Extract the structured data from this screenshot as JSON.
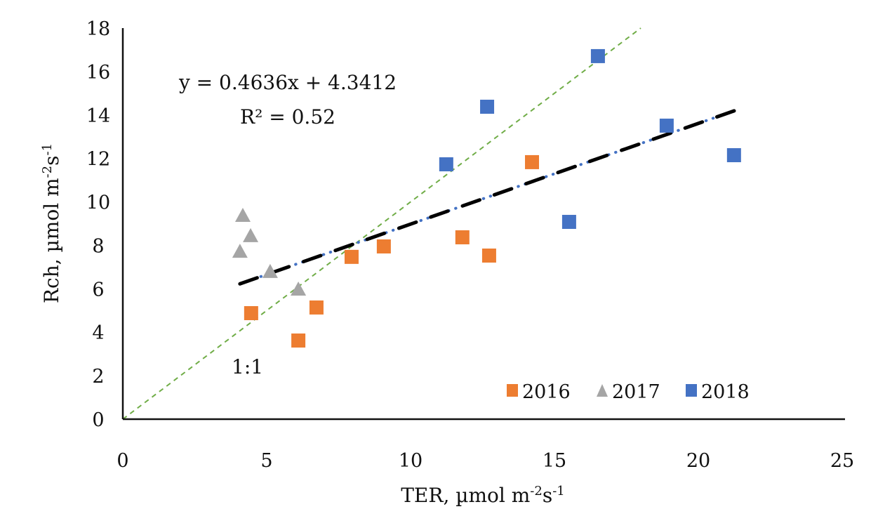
{
  "chart_data": {
    "type": "scatter",
    "title": "",
    "xlabel": "TER, µmol m",
    "xlabel_sup1": "-2",
    "xlabel_mid": "s",
    "xlabel_sup2": "-1",
    "ylabel": "Rch, µmol m",
    "ylabel_sup1": "-2",
    "ylabel_mid": "s",
    "ylabel_sup2": "-1",
    "xlim": [
      0,
      25
    ],
    "ylim": [
      0,
      18
    ],
    "xticks": [
      "0",
      "5",
      "10",
      "15",
      "20",
      "25"
    ],
    "yticks": [
      "0",
      "2",
      "4",
      "6",
      "8",
      "10",
      "12",
      "14",
      "16",
      "18"
    ],
    "grid": false,
    "legend_position": "bottom-right",
    "series": [
      {
        "name": "2016",
        "marker": "square",
        "color": "#ED7D31",
        "points": [
          [
            4.46,
            4.88
          ],
          [
            6.1,
            3.62
          ],
          [
            6.73,
            5.14
          ],
          [
            7.95,
            7.47
          ],
          [
            9.07,
            7.95
          ],
          [
            11.8,
            8.37
          ],
          [
            12.73,
            7.53
          ],
          [
            14.22,
            11.83
          ]
        ]
      },
      {
        "name": "2017",
        "marker": "triangle",
        "color": "#A5A5A5",
        "points": [
          [
            4.17,
            9.37
          ],
          [
            4.44,
            8.44
          ],
          [
            4.07,
            7.72
          ],
          [
            5.12,
            6.79
          ],
          [
            6.1,
            5.98
          ]
        ]
      },
      {
        "name": "2018",
        "marker": "square",
        "color": "#4472C4",
        "points": [
          [
            11.24,
            11.73
          ],
          [
            12.66,
            14.38
          ],
          [
            16.51,
            16.71
          ],
          [
            15.51,
            9.08
          ],
          [
            18.9,
            13.51
          ],
          [
            21.24,
            12.15
          ]
        ]
      }
    ],
    "trendline": {
      "slope": 0.4636,
      "intercept": 4.3412,
      "x_range": [
        4.07,
        21.3
      ],
      "color": "#000000",
      "equation_label": "y = 0.4636x + 4.3412",
      "r2_label": "R² = 0.52"
    },
    "one_to_one_line": {
      "x_range": [
        0,
        18
      ],
      "color": "#70AD47",
      "label": "1:1"
    }
  }
}
